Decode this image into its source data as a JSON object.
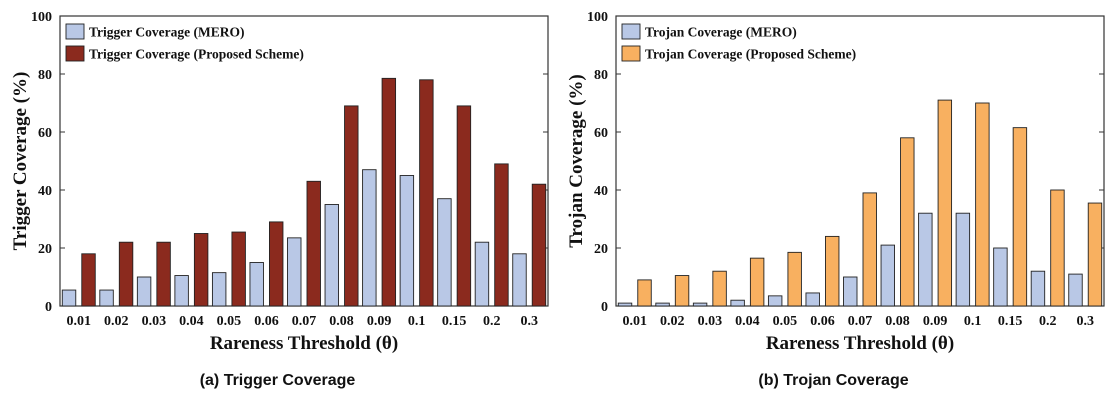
{
  "colors": {
    "mero": "#b9c8e6",
    "proposed_trigger": "#8b2a1e",
    "proposed_trojan": "#f8b060",
    "axis": "#333333"
  },
  "panels": [
    {
      "caption": "(a) Trigger Coverage",
      "xlabel": "Rareness Threshold (θ)",
      "ylabel": "Trigger Coverage (%)",
      "legend": [
        "Trigger Coverage (MERO)",
        "Trigger Coverage (Proposed Scheme)"
      ]
    },
    {
      "caption": "(b) Trojan Coverage",
      "xlabel": "Rareness Threshold (θ)",
      "ylabel": "Trojan Coverage (%)",
      "legend": [
        "Trojan Coverage (MERO)",
        "Trojan Coverage (Proposed Scheme)"
      ]
    }
  ],
  "chart_data": [
    {
      "type": "bar",
      "title": "",
      "xlabel": "Rareness Threshold (θ)",
      "ylabel": "Trigger Coverage (%)",
      "ylim": [
        0,
        100
      ],
      "yticks": [
        0,
        20,
        40,
        60,
        80,
        100
      ],
      "legend_position": "top-left",
      "grid": false,
      "categories": [
        "0.01",
        "0.02",
        "0.03",
        "0.04",
        "0.05",
        "0.06",
        "0.07",
        "0.08",
        "0.09",
        "0.1",
        "0.15",
        "0.2",
        "0.3"
      ],
      "series": [
        {
          "name": "Trigger Coverage (MERO)",
          "color": "#b9c8e6",
          "values": [
            5.5,
            5.5,
            10,
            10.5,
            11.5,
            15,
            23.5,
            35,
            47,
            45,
            37,
            22,
            18
          ]
        },
        {
          "name": "Trigger Coverage (Proposed Scheme)",
          "color": "#8b2a1e",
          "values": [
            18,
            22,
            22,
            25,
            25.5,
            29,
            43,
            69,
            78.5,
            78,
            69,
            49,
            42
          ]
        }
      ]
    },
    {
      "type": "bar",
      "title": "",
      "xlabel": "Rareness Threshold (θ)",
      "ylabel": "Trojan Coverage (%)",
      "ylim": [
        0,
        100
      ],
      "yticks": [
        0,
        20,
        40,
        60,
        80,
        100
      ],
      "legend_position": "top-left",
      "grid": false,
      "categories": [
        "0.01",
        "0.02",
        "0.03",
        "0.04",
        "0.05",
        "0.06",
        "0.07",
        "0.08",
        "0.09",
        "0.1",
        "0.15",
        "0.2",
        "0.3"
      ],
      "series": [
        {
          "name": "Trojan Coverage (MERO)",
          "color": "#b9c8e6",
          "values": [
            1,
            1,
            1,
            2,
            3.5,
            4.5,
            10,
            21,
            32,
            32,
            20,
            12,
            11
          ]
        },
        {
          "name": "Trojan Coverage (Proposed Scheme)",
          "color": "#f8b060",
          "values": [
            9,
            10.5,
            12,
            16.5,
            18.5,
            24,
            39,
            58,
            71,
            70,
            61.5,
            40,
            35.5
          ]
        }
      ]
    }
  ]
}
